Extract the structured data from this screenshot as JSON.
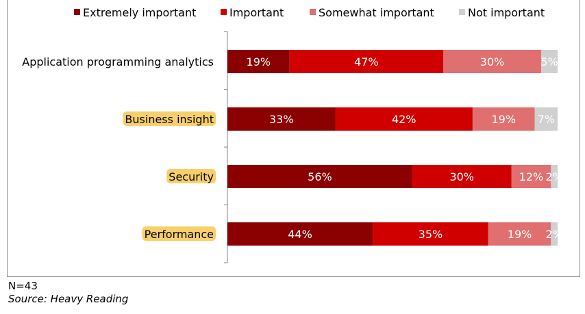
{
  "chart_data": {
    "type": "bar",
    "orientation": "horizontal",
    "stacked": true,
    "percent_stacked": true,
    "categories": [
      "Application programming analytics",
      "Business insight",
      "Security",
      "Performance"
    ],
    "highlighted_categories": [
      "Business insight",
      "Security",
      "Performance"
    ],
    "series": [
      {
        "name": "Extremely important",
        "values": [
          19,
          33,
          56,
          44
        ],
        "color": "#8b0000"
      },
      {
        "name": "Important",
        "values": [
          47,
          42,
          30,
          35
        ],
        "color": "#d10000"
      },
      {
        "name": "Somewhat important",
        "values": [
          30,
          19,
          12,
          19
        ],
        "color": "#e07070"
      },
      {
        "name": "Not important",
        "values": [
          5,
          7,
          2,
          2
        ],
        "color": "#d0d0d0"
      }
    ],
    "value_labels": [
      [
        "19%",
        "47%",
        "30%",
        "5%"
      ],
      [
        "33%",
        "42%",
        "19%",
        "7%"
      ],
      [
        "56%",
        "30%",
        "12%",
        "2%"
      ],
      [
        "44%",
        "35%",
        "19%",
        "2%"
      ]
    ],
    "xlim": [
      0,
      100
    ],
    "grid": false,
    "legend_position": "top"
  },
  "colors": {
    "highlight": "#f7cf6b",
    "axis": "#808080",
    "label_light": "#ffffff",
    "label_dark": "#000000"
  },
  "footer": {
    "n_note": "N=43",
    "source": "Source: Heavy Reading"
  }
}
